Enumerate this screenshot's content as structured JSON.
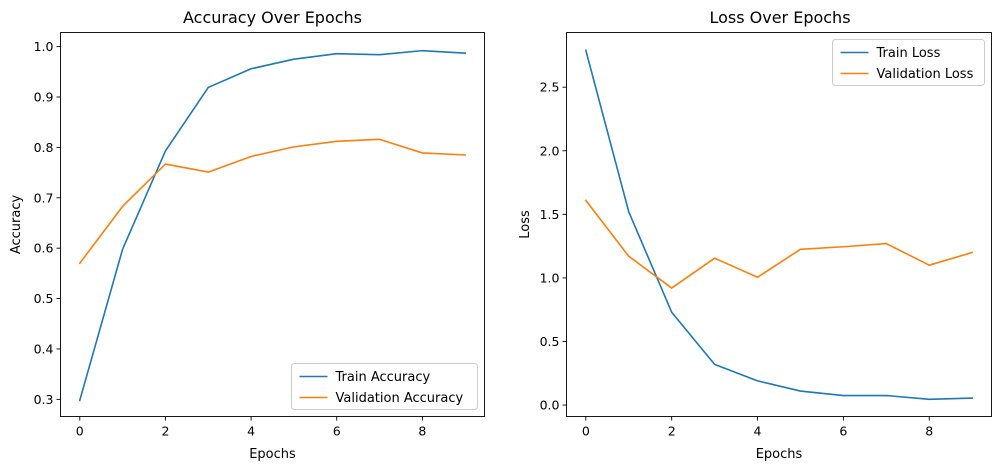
{
  "chart_data": [
    {
      "type": "line",
      "title": "Accuracy Over Epochs",
      "xlabel": "Epochs",
      "ylabel": "Accuracy",
      "xlim": [
        -0.45,
        9.45
      ],
      "ylim": [
        0.266,
        1.028
      ],
      "xticks": [
        0,
        2,
        4,
        6,
        8
      ],
      "yticks": [
        0.3,
        0.4,
        0.5,
        0.6,
        0.7,
        0.8,
        0.9,
        1.0
      ],
      "ytick_labels": [
        "0.3",
        "0.4",
        "0.5",
        "0.6",
        "0.7",
        "0.8",
        "0.9",
        "1.0"
      ],
      "x": [
        0,
        1,
        2,
        3,
        4,
        5,
        6,
        7,
        8,
        9
      ],
      "series": [
        {
          "name": "Train Accuracy",
          "color": "#1f77b4",
          "values": [
            0.298,
            0.598,
            0.793,
            0.919,
            0.956,
            0.975,
            0.986,
            0.984,
            0.992,
            0.987
          ]
        },
        {
          "name": "Validation Accuracy",
          "color": "#ff7f0e",
          "values": [
            0.57,
            0.683,
            0.767,
            0.751,
            0.782,
            0.801,
            0.812,
            0.816,
            0.789,
            0.785
          ]
        }
      ],
      "legend": "lower-right",
      "grid": false
    },
    {
      "type": "line",
      "title": "Loss Over Epochs",
      "xlabel": "Epochs",
      "ylabel": "Loss",
      "xlim": [
        -0.45,
        9.45
      ],
      "ylim": [
        -0.09,
        2.93
      ],
      "xticks": [
        0,
        2,
        4,
        6,
        8
      ],
      "yticks": [
        0.0,
        0.5,
        1.0,
        1.5,
        2.0,
        2.5
      ],
      "ytick_labels": [
        "0.0",
        "0.5",
        "1.0",
        "1.5",
        "2.0",
        "2.5"
      ],
      "x": [
        0,
        1,
        2,
        3,
        4,
        5,
        6,
        7,
        8,
        9
      ],
      "series": [
        {
          "name": "Train Loss",
          "color": "#1f77b4",
          "values": [
            2.79,
            1.52,
            0.73,
            0.32,
            0.19,
            0.11,
            0.075,
            0.075,
            0.045,
            0.055
          ]
        },
        {
          "name": "Validation Loss",
          "color": "#ff7f0e",
          "values": [
            1.61,
            1.17,
            0.92,
            1.155,
            1.005,
            1.225,
            1.245,
            1.27,
            1.1,
            1.2
          ]
        }
      ],
      "legend": "upper-right",
      "grid": false
    }
  ]
}
